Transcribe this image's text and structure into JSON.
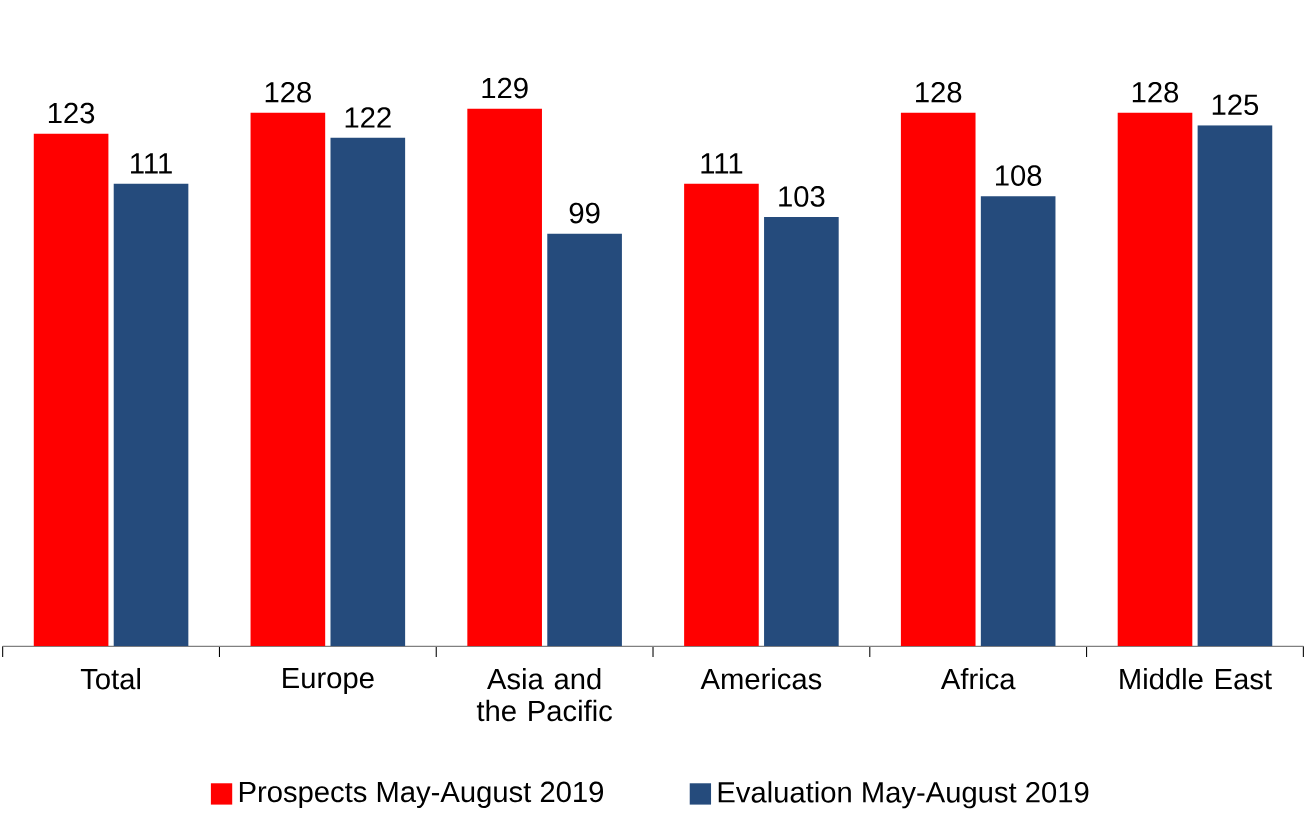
{
  "chart_data": {
    "type": "bar",
    "categories": [
      "Total",
      "Europe",
      "Asia and the Pacific",
      "Americas",
      "Africa",
      "Middle East"
    ],
    "series": [
      {
        "name": "Prospects May-August 2019",
        "color": "#ff0000",
        "values": [
          123,
          128,
          129,
          111,
          128,
          128
        ]
      },
      {
        "name": "Evaluation May-August 2019",
        "color": "#254b7c",
        "values": [
          111,
          122,
          99,
          103,
          108,
          125
        ]
      }
    ],
    "data_labels": true,
    "legend": "bottom"
  }
}
